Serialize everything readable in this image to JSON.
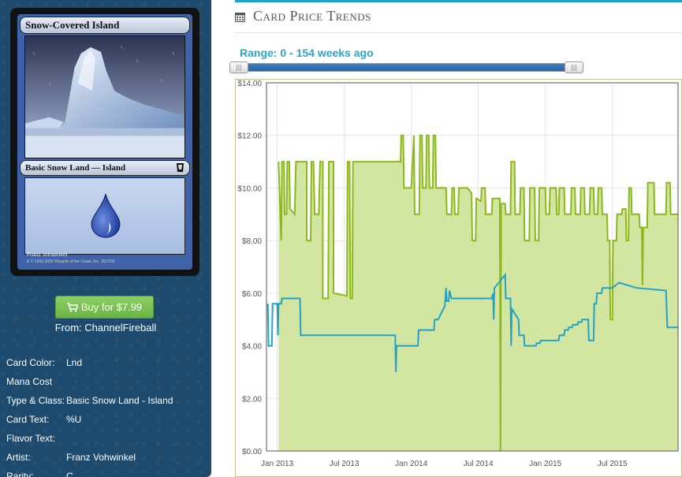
{
  "card": {
    "name": "Snow-Covered Island",
    "type_line": "Basic Snow Land — Island",
    "artist_credit": "Franz Vohwinkel",
    "copyright": "& © 1993-2006 Wizards of the Coast, Inc. 152/155"
  },
  "buy": {
    "label": "Buy for $7.99",
    "icon": "shopping-cart-icon",
    "from": "From: ChannelFireball"
  },
  "attributes": [
    {
      "label": "Card Color:",
      "value": "Lnd"
    },
    {
      "label": "Mana Cost",
      "value": ""
    },
    {
      "label": "Type & Class:",
      "value": "Basic Snow Land - Island"
    },
    {
      "label": "Card Text:",
      "value": "%U"
    },
    {
      "label": "Flavor Text:",
      "value": ""
    },
    {
      "label": "Artist:",
      "value": "Franz Vohwinkel"
    },
    {
      "label": "Rarity:",
      "value": "C"
    }
  ],
  "panel": {
    "title": "Card Price Trends",
    "title_icon": "calendar-icon",
    "range_label": "Range: 0 - 154 weeks ago",
    "slider_handle_glyph": "|||",
    "slider_range": [
      0,
      154
    ]
  },
  "colors": {
    "sidebar": "#1d4a6d",
    "accent": "#29a6c9",
    "buy_button": "#7cc35a",
    "series_paper": "#8ab919",
    "series_paper_fill": "#d2e6a1",
    "series_online": "#22a3c6"
  },
  "chart_data": {
    "type": "line",
    "title": "",
    "xlabel": "",
    "ylabel": "",
    "ylim": [
      0,
      14
    ],
    "y_ticks": [
      "$0.00",
      "$2.00",
      "$4.00",
      "$6.00",
      "$8.00",
      "$10.00",
      "$12.00",
      "$14.00"
    ],
    "y_tick_values": [
      0,
      2,
      4,
      6,
      8,
      10,
      12,
      14
    ],
    "x_ticks": [
      "Jan 2013",
      "Jul 2013",
      "Jan 2014",
      "Jul 2014",
      "Jan 2015",
      "Jul 2015"
    ],
    "x_tick_values": [
      2013.0,
      2013.5,
      2014.0,
      2014.5,
      2015.0,
      2015.5
    ],
    "xlim": [
      2012.92,
      2015.99
    ],
    "grid": true,
    "legend": "none",
    "series": [
      {
        "style": "area",
        "points": [
          [
            2013.01,
            11.0
          ],
          [
            2013.03,
            8.0
          ],
          [
            2013.035,
            11.0
          ],
          [
            2013.05,
            11.0
          ],
          [
            2013.055,
            9.0
          ],
          [
            2013.07,
            9.0
          ],
          [
            2013.075,
            11.0
          ],
          [
            2013.09,
            11.0
          ],
          [
            2013.095,
            9.2
          ],
          [
            2013.13,
            9.0
          ],
          [
            2013.14,
            11.0
          ],
          [
            2013.22,
            11.0
          ],
          [
            2013.22,
            8.0
          ],
          [
            2013.25,
            8.0
          ],
          [
            2013.255,
            11.0
          ],
          [
            2013.27,
            11.0
          ],
          [
            2013.28,
            9.0
          ],
          [
            2013.31,
            9.0
          ],
          [
            2013.32,
            11.0
          ],
          [
            2013.34,
            11.0
          ],
          [
            2013.34,
            5.8
          ],
          [
            2013.38,
            5.8
          ],
          [
            2013.385,
            11.0
          ],
          [
            2013.42,
            11.0
          ],
          [
            2013.42,
            6.0
          ],
          [
            2013.52,
            5.9
          ],
          [
            2013.525,
            11.0
          ],
          [
            2013.54,
            11.0
          ],
          [
            2013.545,
            5.8
          ],
          [
            2013.56,
            5.8
          ],
          [
            2013.565,
            11.0
          ],
          [
            2013.92,
            11.0
          ],
          [
            2013.925,
            12.0
          ],
          [
            2013.94,
            12.0
          ],
          [
            2013.945,
            10.0
          ],
          [
            2014.0,
            10.0
          ],
          [
            2014.02,
            12.0
          ],
          [
            2014.025,
            9.0
          ],
          [
            2014.06,
            9.0
          ],
          [
            2014.065,
            12.0
          ],
          [
            2014.08,
            12.0
          ],
          [
            2014.085,
            10.0
          ],
          [
            2014.11,
            10.0
          ],
          [
            2014.115,
            12.0
          ],
          [
            2014.13,
            12.0
          ],
          [
            2014.135,
            10.0
          ],
          [
            2014.16,
            10.0
          ],
          [
            2014.165,
            12.0
          ],
          [
            2014.18,
            12.0
          ],
          [
            2014.185,
            10.0
          ],
          [
            2014.26,
            10.0
          ],
          [
            2014.265,
            9.0
          ],
          [
            2014.3,
            9.0
          ],
          [
            2014.305,
            10.0
          ],
          [
            2014.32,
            10.0
          ],
          [
            2014.325,
            9.0
          ],
          [
            2014.35,
            9.0
          ],
          [
            2014.355,
            10.0
          ],
          [
            2014.42,
            10.0
          ],
          [
            2014.45,
            9.8
          ],
          [
            2014.455,
            8.0
          ],
          [
            2014.48,
            8.0
          ],
          [
            2014.485,
            9.6
          ],
          [
            2014.52,
            9.5
          ],
          [
            2014.525,
            10.0
          ],
          [
            2014.55,
            10.0
          ],
          [
            2014.555,
            9.0
          ],
          [
            2014.6,
            9.0
          ],
          [
            2014.605,
            9.6
          ],
          [
            2014.66,
            9.6
          ],
          [
            2014.665,
            0.0
          ],
          [
            2014.67,
            9.4
          ],
          [
            2014.7,
            9.4
          ],
          [
            2014.705,
            9.0
          ],
          [
            2014.74,
            9.0
          ],
          [
            2014.745,
            11.0
          ],
          [
            2014.77,
            11.0
          ],
          [
            2014.775,
            9.0
          ],
          [
            2014.81,
            9.0
          ],
          [
            2014.815,
            10.0
          ],
          [
            2014.84,
            10.0
          ],
          [
            2014.845,
            8.0
          ],
          [
            2014.88,
            8.0
          ],
          [
            2014.885,
            10.0
          ],
          [
            2014.92,
            10.0
          ],
          [
            2014.925,
            8.0
          ],
          [
            2014.95,
            8.0
          ],
          [
            2014.955,
            10.0
          ],
          [
            2015.0,
            10.0
          ],
          [
            2015.005,
            9.0
          ],
          [
            2015.03,
            9.0
          ],
          [
            2015.035,
            10.0
          ],
          [
            2015.08,
            10.0
          ],
          [
            2015.085,
            9.0
          ],
          [
            2015.1,
            9.0
          ],
          [
            2015.105,
            10.0
          ],
          [
            2015.14,
            10.0
          ],
          [
            2015.145,
            9.0
          ],
          [
            2015.19,
            9.0
          ],
          [
            2015.195,
            10.0
          ],
          [
            2015.22,
            10.0
          ],
          [
            2015.225,
            9.0
          ],
          [
            2015.26,
            9.0
          ],
          [
            2015.265,
            10.0
          ],
          [
            2015.29,
            10.0
          ],
          [
            2015.295,
            9.0
          ],
          [
            2015.33,
            9.0
          ],
          [
            2015.335,
            10.0
          ],
          [
            2015.36,
            10.0
          ],
          [
            2015.365,
            9.0
          ],
          [
            2015.39,
            9.0
          ],
          [
            2015.395,
            10.0
          ],
          [
            2015.42,
            10.0
          ],
          [
            2015.425,
            9.0
          ],
          [
            2015.46,
            9.0
          ],
          [
            2015.465,
            8.0
          ],
          [
            2015.48,
            8.0
          ],
          [
            2015.485,
            5.0
          ],
          [
            2015.5,
            5.0
          ],
          [
            2015.505,
            8.0
          ],
          [
            2015.53,
            8.0
          ],
          [
            2015.535,
            9.0
          ],
          [
            2015.57,
            9.0
          ],
          [
            2015.575,
            9.2
          ],
          [
            2015.6,
            9.2
          ],
          [
            2015.605,
            8.0
          ],
          [
            2015.62,
            8.0
          ],
          [
            2015.625,
            10.0
          ],
          [
            2015.64,
            10.0
          ],
          [
            2015.645,
            9.0
          ],
          [
            2015.7,
            9.0
          ],
          [
            2015.705,
            8.5
          ],
          [
            2015.72,
            8.5
          ],
          [
            2015.725,
            6.3
          ],
          [
            2015.73,
            8.5
          ],
          [
            2015.76,
            8.5
          ],
          [
            2015.765,
            10.2
          ],
          [
            2015.81,
            10.2
          ],
          [
            2015.815,
            9.0
          ],
          [
            2015.9,
            9.0
          ],
          [
            2015.905,
            10.2
          ],
          [
            2015.93,
            10.2
          ],
          [
            2015.935,
            9.0
          ],
          [
            2015.99,
            9.0
          ]
        ]
      },
      {
        "style": "line",
        "points": [
          [
            2012.93,
            5.6
          ],
          [
            2012.935,
            4.0
          ],
          [
            2012.96,
            4.0
          ],
          [
            2012.965,
            5.6
          ],
          [
            2013.0,
            5.6
          ],
          [
            2013.005,
            4.4
          ],
          [
            2013.01,
            5.6
          ],
          [
            2013.03,
            5.6
          ],
          [
            2013.035,
            5.8
          ],
          [
            2013.17,
            5.8
          ],
          [
            2013.175,
            4.4
          ],
          [
            2013.88,
            4.4
          ],
          [
            2013.885,
            3.0
          ],
          [
            2013.89,
            4.0
          ],
          [
            2014.05,
            4.0
          ],
          [
            2014.055,
            4.6
          ],
          [
            2014.17,
            4.6
          ],
          [
            2014.175,
            5.0
          ],
          [
            2014.2,
            5.0
          ],
          [
            2014.25,
            5.5
          ],
          [
            2014.26,
            6.2
          ],
          [
            2014.265,
            5.7
          ],
          [
            2014.28,
            5.7
          ],
          [
            2014.285,
            6.1
          ],
          [
            2014.3,
            5.8
          ],
          [
            2014.6,
            5.8
          ],
          [
            2014.61,
            6.0
          ],
          [
            2014.615,
            5.0
          ],
          [
            2014.62,
            6.2
          ],
          [
            2014.7,
            6.7
          ],
          [
            2014.705,
            5.8
          ],
          [
            2014.74,
            5.8
          ],
          [
            2014.745,
            4.0
          ],
          [
            2014.75,
            5.4
          ],
          [
            2014.8,
            5.0
          ],
          [
            2014.805,
            4.4
          ],
          [
            2014.84,
            4.4
          ],
          [
            2014.845,
            4.0
          ],
          [
            2014.93,
            4.0
          ],
          [
            2014.935,
            4.1
          ],
          [
            2014.96,
            4.1
          ],
          [
            2014.965,
            4.2
          ],
          [
            2015.1,
            4.2
          ],
          [
            2015.105,
            4.4
          ],
          [
            2015.14,
            4.4
          ],
          [
            2015.145,
            4.6
          ],
          [
            2015.17,
            4.6
          ],
          [
            2015.175,
            4.7
          ],
          [
            2015.2,
            4.7
          ],
          [
            2015.205,
            4.8
          ],
          [
            2015.24,
            4.8
          ],
          [
            2015.245,
            4.9
          ],
          [
            2015.27,
            4.9
          ],
          [
            2015.275,
            5.0
          ],
          [
            2015.32,
            5.0
          ],
          [
            2015.325,
            4.2
          ],
          [
            2015.36,
            4.2
          ],
          [
            2015.365,
            5.6
          ],
          [
            2015.38,
            5.6
          ],
          [
            2015.385,
            6.0
          ],
          [
            2015.42,
            6.0
          ],
          [
            2015.425,
            6.2
          ],
          [
            2015.5,
            6.2
          ],
          [
            2015.55,
            6.4
          ],
          [
            2015.68,
            6.2
          ],
          [
            2015.9,
            6.1
          ],
          [
            2015.91,
            4.7
          ],
          [
            2015.99,
            4.7
          ]
        ]
      }
    ]
  }
}
